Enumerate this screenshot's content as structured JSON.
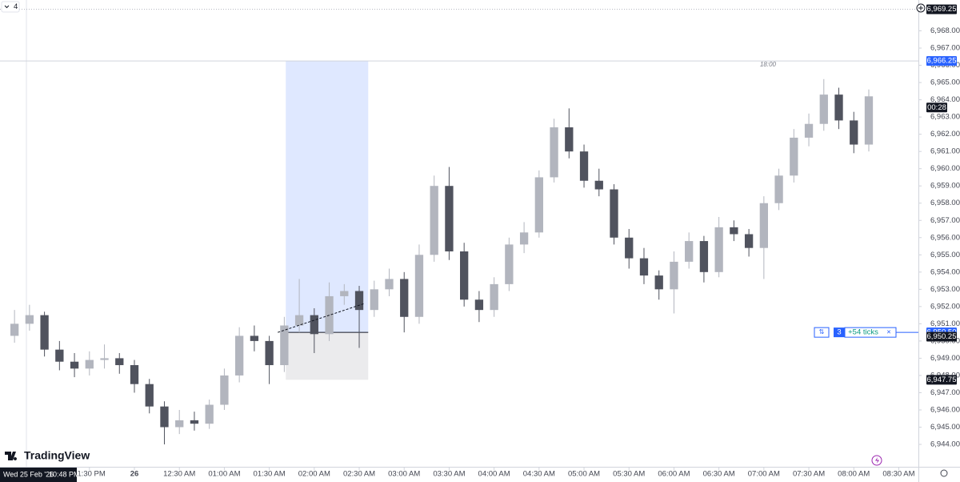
{
  "chart_data": {
    "type": "candlestick",
    "toolbar_label": "4",
    "brand": "TradingView",
    "session_label": "18:00",
    "countdown": "00:28",
    "crosshair": {
      "date": "Wed 25 Feb '26",
      "time": "10:48 PM"
    },
    "up_color": "#b2b5be",
    "down_color": "#50535e",
    "x": [
      -80,
      -70,
      -60,
      -50,
      -40,
      -30,
      -20,
      -10,
      0,
      10,
      20,
      30,
      40,
      50,
      60,
      70,
      80,
      90,
      100,
      110,
      120,
      130,
      140,
      150,
      160,
      170,
      180,
      190,
      200,
      210,
      220,
      230,
      240,
      250,
      260,
      270,
      280,
      290,
      300,
      310,
      320,
      330,
      340,
      350,
      360,
      370,
      380,
      390,
      400,
      410,
      420,
      430,
      440,
      450,
      460,
      470,
      480,
      490
    ],
    "open": [
      6950.3,
      6951.0,
      6951.5,
      6949.5,
      6948.8,
      6948.4,
      6948.9,
      6949.0,
      6948.6,
      6947.5,
      6946.2,
      6945.0,
      6945.4,
      6945.2,
      6946.3,
      6948.0,
      6950.3,
      6950.0,
      6948.6,
      6950.9,
      6951.5,
      6950.4,
      6952.6,
      6952.9,
      6951.8,
      6953.0,
      6953.6,
      6951.4,
      6955.0,
      6959.0,
      6955.2,
      6952.4,
      6951.8,
      6953.3,
      6955.6,
      6956.3,
      6959.5,
      6962.4,
      6961.0,
      6959.3,
      6958.8,
      6956.0,
      6954.8,
      6953.8,
      6953.0,
      6954.6,
      6955.8,
      6954.0,
      6956.6,
      6956.2,
      6955.4,
      6958.0,
      6959.6,
      6961.8,
      6962.6,
      6964.3,
      6962.8,
      6961.4
    ],
    "high": [
      6951.8,
      6952.1,
      6951.7,
      6950.0,
      6949.3,
      6949.4,
      6949.8,
      6949.3,
      6948.9,
      6947.8,
      6946.5,
      6946.0,
      6945.9,
      6946.6,
      6948.4,
      6950.8,
      6950.9,
      6950.3,
      6951.4,
      6953.6,
      6951.9,
      6953.4,
      6953.3,
      6953.2,
      6953.5,
      6954.2,
      6954.0,
      6955.6,
      6959.6,
      6960.1,
      6955.7,
      6952.9,
      6953.7,
      6956.0,
      6956.9,
      6959.9,
      6962.9,
      6963.5,
      6961.4,
      6960.0,
      6959.1,
      6956.5,
      6955.4,
      6954.1,
      6955.2,
      6956.3,
      6956.1,
      6957.2,
      6957.0,
      6956.5,
      6958.4,
      6960.0,
      6962.3,
      6963.2,
      6965.2,
      6964.7,
      6963.3,
      6964.6
    ],
    "low": [
      6949.9,
      6950.6,
      6949.1,
      6948.3,
      6947.9,
      6948.0,
      6948.4,
      6948.1,
      6947.0,
      6945.8,
      6944.0,
      6944.6,
      6944.8,
      6944.9,
      6946.0,
      6947.6,
      6949.4,
      6947.5,
      6948.2,
      6950.5,
      6949.3,
      6950.0,
      6952.1,
      6949.6,
      6951.4,
      6952.6,
      6950.5,
      6951.0,
      6954.6,
      6954.7,
      6952.0,
      6951.1,
      6951.4,
      6952.9,
      6955.1,
      6956.0,
      6959.2,
      6960.6,
      6958.9,
      6958.4,
      6955.6,
      6954.2,
      6953.3,
      6952.4,
      6951.6,
      6954.2,
      6953.4,
      6953.7,
      6955.8,
      6954.9,
      6953.6,
      6957.6,
      6959.2,
      6961.3,
      6962.2,
      6962.3,
      6960.9,
      6961.0
    ],
    "close": [
      6951.0,
      6951.5,
      6949.5,
      6948.8,
      6948.4,
      6948.9,
      6949.0,
      6948.6,
      6947.5,
      6946.2,
      6945.0,
      6945.4,
      6945.2,
      6946.3,
      6948.0,
      6950.3,
      6950.0,
      6948.6,
      6950.9,
      6951.5,
      6950.4,
      6952.6,
      6952.9,
      6951.8,
      6953.0,
      6953.6,
      6951.4,
      6955.0,
      6959.0,
      6955.2,
      6952.4,
      6951.8,
      6953.3,
      6955.6,
      6956.3,
      6959.5,
      6962.4,
      6961.0,
      6959.3,
      6958.8,
      6956.0,
      6954.8,
      6953.8,
      6953.0,
      6954.6,
      6955.8,
      6954.0,
      6956.6,
      6956.2,
      6955.4,
      6958.0,
      6959.6,
      6961.8,
      6962.6,
      6964.3,
      6962.8,
      6961.4,
      6964.2
    ],
    "xlim": [
      -89.68,
      523.1
    ],
    "ylim": [
      6942.7,
      6969.79
    ],
    "xticks": [
      {
        "value": -30,
        "label": "11:30 PM"
      },
      {
        "value": 0,
        "label": "26"
      },
      {
        "value": 30,
        "label": "12:30 AM"
      },
      {
        "value": 60,
        "label": "01:00 AM"
      },
      {
        "value": 90,
        "label": "01:30 AM"
      },
      {
        "value": 120,
        "label": "02:00 AM"
      },
      {
        "value": 150,
        "label": "02:30 AM"
      },
      {
        "value": 180,
        "label": "03:00 AM"
      },
      {
        "value": 210,
        "label": "03:30 AM"
      },
      {
        "value": 240,
        "label": "04:00 AM"
      },
      {
        "value": 270,
        "label": "04:30 AM"
      },
      {
        "value": 300,
        "label": "05:00 AM"
      },
      {
        "value": 330,
        "label": "05:30 AM"
      },
      {
        "value": 360,
        "label": "06:00 AM"
      },
      {
        "value": 390,
        "label": "06:30 AM"
      },
      {
        "value": 420,
        "label": "07:00 AM"
      },
      {
        "value": 450,
        "label": "07:30 AM"
      },
      {
        "value": 480,
        "label": "08:00 AM"
      },
      {
        "value": 510,
        "label": "08:30 AM"
      }
    ],
    "yticks": [
      {
        "value": 6944,
        "label": "6,944.00"
      },
      {
        "value": 6945,
        "label": "6,945.00"
      },
      {
        "value": 6946,
        "label": "6,946.00"
      },
      {
        "value": 6947,
        "label": "6,947.00"
      },
      {
        "value": 6948,
        "label": "6,948.00"
      },
      {
        "value": 6949,
        "label": "6,949.00"
      },
      {
        "value": 6950,
        "label": "6,950.00"
      },
      {
        "value": 6951,
        "label": "6,951.00"
      },
      {
        "value": 6952,
        "label": "6,952.00"
      },
      {
        "value": 6953,
        "label": "6,953.00"
      },
      {
        "value": 6954,
        "label": "6,954.00"
      },
      {
        "value": 6955,
        "label": "6,955.00"
      },
      {
        "value": 6956,
        "label": "6,956.00"
      },
      {
        "value": 6957,
        "label": "6,957.00"
      },
      {
        "value": 6958,
        "label": "6,958.00"
      },
      {
        "value": 6959,
        "label": "6,959.00"
      },
      {
        "value": 6960,
        "label": "6,960.00"
      },
      {
        "value": 6961,
        "label": "6,961.00"
      },
      {
        "value": 6962,
        "label": "6,962.00"
      },
      {
        "value": 6963,
        "label": "6,963.00"
      },
      {
        "value": 6964,
        "label": "6,964.00"
      },
      {
        "value": 6965,
        "label": "6,965.00"
      },
      {
        "value": 6966,
        "label": "6,966.00"
      },
      {
        "value": 6967,
        "label": "6,967.00"
      },
      {
        "value": 6968,
        "label": "6,968.00"
      }
    ],
    "position": {
      "start": 101,
      "end": 156,
      "entry": 6950.5,
      "target": 6966.25,
      "stop": 6947.75
    },
    "order_line": {
      "value": 6950.5,
      "quantity": 3,
      "pnl": "+54 ticks"
    },
    "price_labels": [
      {
        "value": 6969.25,
        "label": "6,969.25",
        "color": "#131722",
        "line": "dotted"
      },
      {
        "value": 6966.25,
        "label": "6,966.25",
        "color": "#2962ff",
        "line": "solid"
      },
      {
        "value": 6950.5,
        "label": "6,950.50",
        "color": "#2962ff",
        "line": "none"
      },
      {
        "value": 6950.25,
        "label": "6,950.25",
        "color": "#131722",
        "line": "none"
      },
      {
        "value": 6947.75,
        "label": "6,947.75",
        "color": "#131722",
        "line": "none"
      }
    ]
  }
}
